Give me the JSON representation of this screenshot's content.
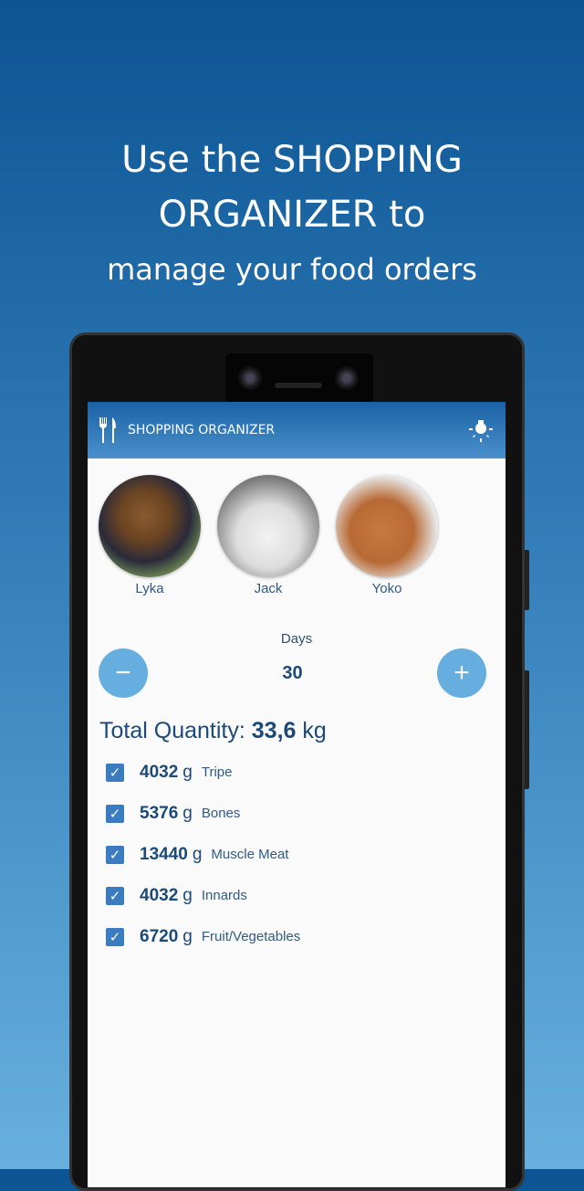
{
  "headline": {
    "line1": "Use the SHOPPING",
    "line2": "ORGANIZER to",
    "line3": "manage your food orders"
  },
  "appbar": {
    "title": "SHOPPING ORGANIZER",
    "logo_icon": "fork-knife-icon",
    "action_icon": "lightbulb-icon"
  },
  "pets": [
    {
      "name": "Lyka"
    },
    {
      "name": "Jack"
    },
    {
      "name": "Yoko"
    }
  ],
  "days": {
    "label": "Days",
    "value": "30",
    "minus": "−",
    "plus": "+"
  },
  "total": {
    "label": "Total Quantity:",
    "value": "33,6",
    "unit": "kg"
  },
  "items": [
    {
      "qty": "4032",
      "unit": "g",
      "label": "Tripe",
      "checked": true
    },
    {
      "qty": "5376",
      "unit": "g",
      "label": "Bones",
      "checked": true
    },
    {
      "qty": "13440",
      "unit": "g",
      "label": "Muscle Meat",
      "checked": true
    },
    {
      "qty": "4032",
      "unit": "g",
      "label": "Innards",
      "checked": true
    },
    {
      "qty": "6720",
      "unit": "g",
      "label": "Fruit/Vegetables",
      "checked": true
    }
  ],
  "colors": {
    "accent": "#66aee0",
    "primary": "#1b4a78",
    "checkbox": "#3b7cc0"
  }
}
